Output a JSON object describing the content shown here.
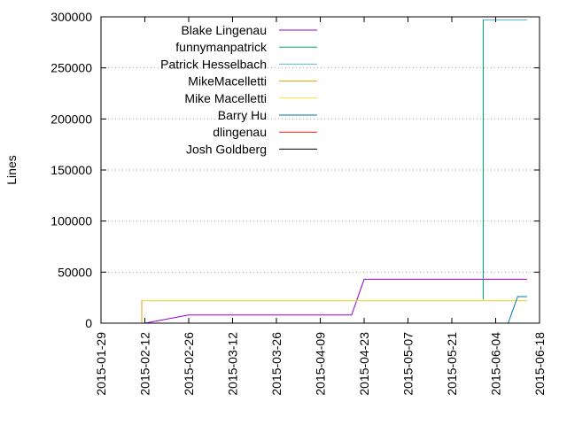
{
  "chart_data": {
    "type": "line",
    "title": "",
    "xlabel": "",
    "ylabel": "Lines",
    "xlim": [
      "2015-01-29",
      "2015-06-18"
    ],
    "ylim": [
      0,
      300000
    ],
    "y_ticks": [
      "0",
      "50000",
      "100000",
      "150000",
      "200000",
      "250000",
      "300000"
    ],
    "x_ticks": [
      "2015-01-29",
      "2015-02-12",
      "2015-02-26",
      "2015-03-12",
      "2015-03-26",
      "2015-04-09",
      "2015-04-23",
      "2015-05-07",
      "2015-05-21",
      "2015-06-04",
      "2015-06-18"
    ],
    "grid": "horizontal dotted",
    "legend_position": "top-left",
    "series": [
      {
        "name": "Blake Lingenau",
        "color": "#9400d3",
        "points": [
          [
            "2015-02-12",
            0
          ],
          [
            "2015-02-26",
            8000
          ],
          [
            "2015-04-19",
            8000
          ],
          [
            "2015-04-23",
            43000
          ],
          [
            "2015-06-14",
            43000
          ]
        ]
      },
      {
        "name": "funnymanpatrick",
        "color": "#009e73",
        "points": [
          [
            "2015-05-31",
            23000
          ],
          [
            "2015-05-31",
            297000
          ],
          [
            "2015-06-14",
            297000
          ]
        ]
      },
      {
        "name": "Patrick Hesselbach",
        "color": "#56b4e9",
        "points": [
          [
            "2015-05-31",
            297000
          ],
          [
            "2015-06-14",
            297000
          ]
        ]
      },
      {
        "name": "MikeMacelletti",
        "color": "#e69f00",
        "points": [
          [
            "2015-02-11",
            0
          ],
          [
            "2015-02-11",
            22000
          ],
          [
            "2015-06-14",
            22000
          ]
        ]
      },
      {
        "name": "Mike Macelletti",
        "color": "#f0e442",
        "points": [
          [
            "2015-02-11",
            22000
          ],
          [
            "2015-06-14",
            22000
          ]
        ]
      },
      {
        "name": "Barry Hu",
        "color": "#0072b2",
        "points": [
          [
            "2015-06-04",
            0
          ],
          [
            "2015-06-08",
            0
          ],
          [
            "2015-06-11",
            26000
          ],
          [
            "2015-06-14",
            26000
          ]
        ]
      },
      {
        "name": "dlingenau",
        "color": "#e51e10",
        "points": [
          [
            "2015-06-06",
            0
          ],
          [
            "2015-06-07",
            0
          ]
        ]
      },
      {
        "name": "Josh Goldberg",
        "color": "#000000",
        "points": [
          [
            "2015-06-06",
            0
          ],
          [
            "2015-06-07",
            0
          ]
        ]
      }
    ]
  }
}
